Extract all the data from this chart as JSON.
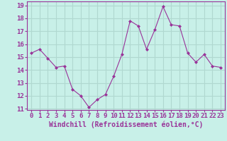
{
  "x": [
    0,
    1,
    2,
    3,
    4,
    5,
    6,
    7,
    8,
    9,
    10,
    11,
    12,
    13,
    14,
    15,
    16,
    17,
    18,
    19,
    20,
    21,
    22,
    23
  ],
  "y": [
    15.3,
    15.6,
    14.9,
    14.2,
    14.3,
    12.5,
    12.0,
    11.1,
    11.7,
    12.1,
    13.5,
    15.2,
    17.8,
    17.4,
    15.6,
    17.1,
    18.9,
    17.5,
    17.4,
    15.3,
    14.6,
    15.2,
    14.3,
    14.2
  ],
  "line_color": "#993399",
  "marker": "D",
  "marker_size": 2,
  "bg_color": "#c8f0e8",
  "grid_color": "#b0d8d0",
  "xlabel": "Windchill (Refroidissement éolien,°C)",
  "xlabel_color": "#993399",
  "tick_color": "#993399",
  "ylim": [
    11,
    19
  ],
  "yticks": [
    11,
    12,
    13,
    14,
    15,
    16,
    17,
    18,
    19
  ],
  "xticks": [
    0,
    1,
    2,
    3,
    4,
    5,
    6,
    7,
    8,
    9,
    10,
    11,
    12,
    13,
    14,
    15,
    16,
    17,
    18,
    19,
    20,
    21,
    22,
    23
  ],
  "xtick_labels": [
    "0",
    "1",
    "2",
    "3",
    "4",
    "5",
    "6",
    "7",
    "8",
    "9",
    "10",
    "11",
    "12",
    "13",
    "14",
    "15",
    "16",
    "17",
    "18",
    "19",
    "20",
    "21",
    "22",
    "23"
  ],
  "font_size": 6.5
}
